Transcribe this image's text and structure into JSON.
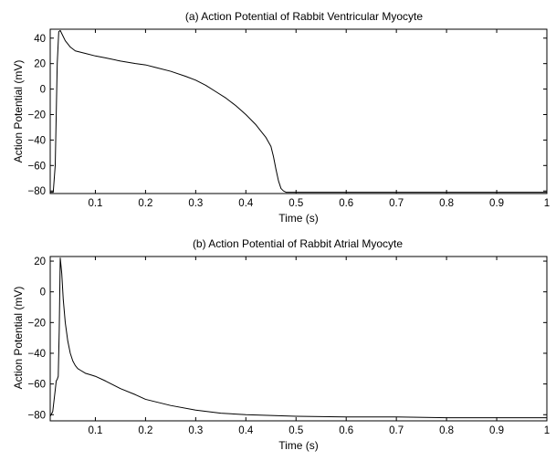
{
  "chart_data": [
    {
      "type": "line",
      "title": "(a) Action Potential of Rabbit Ventricular Myocyte",
      "xlabel": "Time (s)",
      "ylabel": "Action Potential (mV)",
      "xlim": [
        0.01,
        1.0
      ],
      "ylim": [
        -82,
        47
      ],
      "xticks": [
        0.1,
        0.2,
        0.3,
        0.4,
        0.5,
        0.6,
        0.7,
        0.8,
        0.9,
        1
      ],
      "xtick_labels": [
        "0.1",
        "0.2",
        "0.3",
        "0.4",
        "0.5",
        "0.6",
        "0.7",
        "0.8",
        "0.9",
        "1"
      ],
      "yticks": [
        40,
        20,
        0,
        -20,
        -40,
        -60,
        -80
      ],
      "ytick_labels": [
        "40",
        "20",
        "0",
        "−20",
        "−40",
        "−60",
        "−80"
      ],
      "grid": false,
      "series": [
        {
          "color": "#000000",
          "x": [
            0.01,
            0.016,
            0.02,
            0.022,
            0.024,
            0.027,
            0.03,
            0.035,
            0.04,
            0.05,
            0.06,
            0.08,
            0.1,
            0.12,
            0.15,
            0.18,
            0.2,
            0.22,
            0.25,
            0.28,
            0.3,
            0.32,
            0.34,
            0.36,
            0.38,
            0.4,
            0.42,
            0.43,
            0.44,
            0.45,
            0.455,
            0.46,
            0.465,
            0.47,
            0.475,
            0.48,
            0.5,
            0.6,
            0.7,
            0.8,
            0.9,
            1.0
          ],
          "y": [
            -81,
            -81,
            -60,
            -20,
            20,
            45,
            46,
            42,
            38,
            33,
            30,
            28,
            26,
            24.5,
            22,
            20,
            19,
            17,
            14,
            10,
            7,
            3,
            -2,
            -7,
            -13,
            -20,
            -28,
            -33,
            -38,
            -45,
            -53,
            -63,
            -72,
            -78,
            -80,
            -81,
            -81,
            -81,
            -81,
            -81,
            -81,
            -81
          ]
        }
      ]
    },
    {
      "type": "line",
      "title": "(b) Action Potential of Rabbit Atrial Myocyte",
      "xlabel": "Time (s)",
      "ylabel": "Action Potential (mV)",
      "xlim": [
        0.01,
        1.0
      ],
      "ylim": [
        -84,
        23
      ],
      "xticks": [
        0.1,
        0.2,
        0.3,
        0.4,
        0.5,
        0.6,
        0.7,
        0.8,
        0.9,
        1
      ],
      "xtick_labels": [
        "0.1",
        "0.2",
        "0.3",
        "0.4",
        "0.5",
        "0.6",
        "0.7",
        "0.8",
        "0.9",
        "1"
      ],
      "yticks": [
        20,
        0,
        -20,
        -40,
        -60,
        -80
      ],
      "ytick_labels": [
        "20",
        "0",
        "−20",
        "−40",
        "−60",
        "−80"
      ],
      "grid": false,
      "series": [
        {
          "color": "#000000",
          "x": [
            0.01,
            0.015,
            0.02,
            0.022,
            0.024,
            0.026,
            0.028,
            0.03,
            0.033,
            0.036,
            0.04,
            0.045,
            0.05,
            0.055,
            0.06,
            0.065,
            0.07,
            0.08,
            0.09,
            0.1,
            0.12,
            0.15,
            0.18,
            0.2,
            0.25,
            0.3,
            0.35,
            0.4,
            0.45,
            0.5,
            0.6,
            0.7,
            0.8,
            0.9,
            1.0
          ],
          "y": [
            -81,
            -78,
            -64,
            -58,
            -57,
            -55,
            -25,
            22,
            12,
            -5,
            -20,
            -32,
            -40,
            -45,
            -48,
            -50,
            -51,
            -53,
            -54,
            -55,
            -58,
            -63,
            -67,
            -70,
            -74,
            -77,
            -79,
            -80,
            -80.5,
            -81,
            -81.5,
            -81.5,
            -82,
            -82,
            -82
          ]
        }
      ]
    }
  ]
}
